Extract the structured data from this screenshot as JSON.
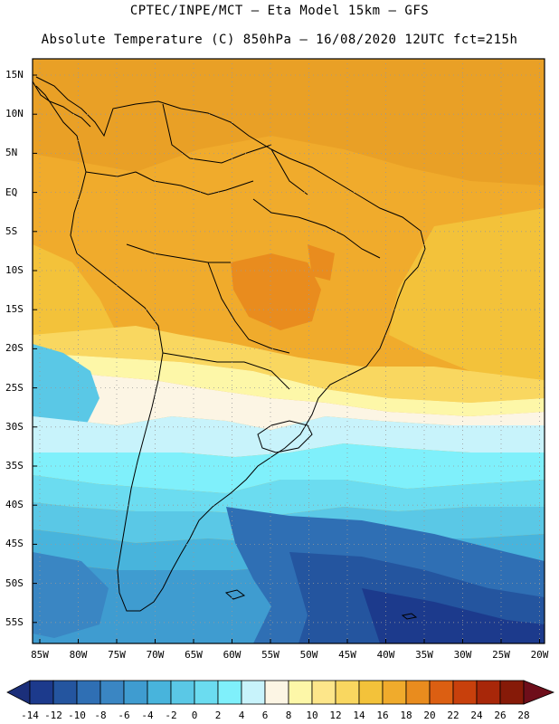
{
  "header": {
    "line1": "CPTEC/INPE/MCT —  Eta Model 15km — GFS",
    "line2": "Absolute Temperature (C) 850hPa — 16/08/2020 12UTC fct=215h"
  },
  "lat_labels": [
    "15N",
    "10N",
    "5N",
    "EQ",
    "5S",
    "10S",
    "15S",
    "20S",
    "25S",
    "30S",
    "35S",
    "40S",
    "45S",
    "50S",
    "55S"
  ],
  "lon_labels": [
    "85W",
    "80W",
    "75W",
    "70W",
    "65W",
    "60W",
    "55W",
    "50W",
    "45W",
    "40W",
    "35W",
    "30W",
    "25W",
    "20W"
  ],
  "colorbar": {
    "ticks": [
      "-14",
      "-12",
      "-10",
      "-8",
      "-6",
      "-4",
      "-2",
      "0",
      "2",
      "4",
      "6",
      "8",
      "10",
      "12",
      "14",
      "16",
      "18",
      "20",
      "22",
      "24",
      "26",
      "28"
    ],
    "colors": [
      "#1c3a8c",
      "#24559f",
      "#2f6fb4",
      "#3a86c3",
      "#3f9cd0",
      "#48b4dc",
      "#5ac8e6",
      "#6bdcf0",
      "#7ff0fb",
      "#c8f3fb",
      "#fcf5e4",
      "#fdf7a8",
      "#fde68a",
      "#f9d760",
      "#f3c23a",
      "#f0ab2c",
      "#e98c1e",
      "#dc5f12",
      "#c8400c",
      "#a82709",
      "#861a08"
    ],
    "low_color": "#1b2f7a",
    "high_color": "#6e0e1a"
  }
}
